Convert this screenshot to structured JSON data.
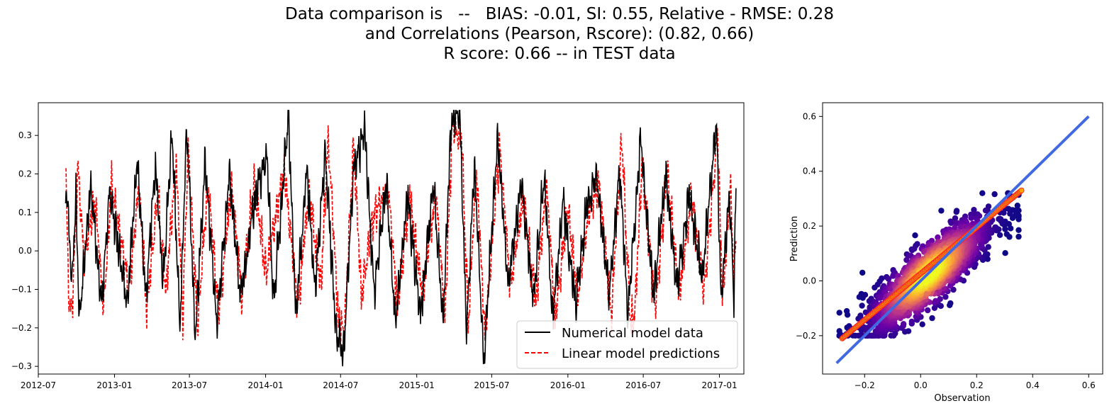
{
  "title_lines": [
    "Data comparison is   --   BIAS: -0.01, SI: 0.55, Relative - RMSE: 0.28",
    "and Correlations (Pearson, Rscore): (0.82, 0.66)",
    "R score: 0.66 -- in TEST data"
  ],
  "chart_data": [
    {
      "type": "line",
      "x_range": [
        "2012-07-01",
        "2017-03-01"
      ],
      "ylim": [
        -0.32,
        0.385
      ],
      "xticks": [
        "2012-07-01",
        "2013-01-01",
        "2013-07-01",
        "2014-01-01",
        "2014-07-01",
        "2015-01-01",
        "2015-07-01",
        "2016-01-01",
        "2016-07-01",
        "2017-01-01"
      ],
      "xtick_labels": [
        "2012-07",
        "2013-01",
        "2013-07",
        "2014-01",
        "2014-07",
        "2015-01",
        "2015-07",
        "2016-01",
        "2016-07",
        "2017-01"
      ],
      "yticks": [
        -0.3,
        -0.2,
        -0.1,
        0.0,
        0.1,
        0.2,
        0.3
      ],
      "ytick_labels": [
        "−0.3",
        "−0.2",
        "−0.1",
        "0.0",
        "0.1",
        "0.2",
        "0.3"
      ],
      "legend": "bottom-right",
      "series": [
        {
          "name": "Numerical model data",
          "color": "#000000",
          "style": "solid",
          "anchors": [
            [
              "2012-09-05",
              0.15
            ],
            [
              "2012-09-10",
              0.13
            ],
            [
              "2012-09-20",
              -0.1
            ],
            [
              "2012-09-30",
              0.15
            ],
            [
              "2012-10-08",
              -0.18
            ],
            [
              "2012-11-05",
              0.17
            ],
            [
              "2012-12-01",
              -0.15
            ],
            [
              "2012-12-20",
              0.16
            ],
            [
              "2013-02-01",
              -0.14
            ],
            [
              "2013-02-25",
              0.24
            ],
            [
              "2013-03-18",
              -0.12
            ],
            [
              "2013-04-10",
              0.23
            ],
            [
              "2013-04-28",
              -0.09
            ],
            [
              "2013-05-20",
              0.31
            ],
            [
              "2013-06-08",
              -0.19
            ],
            [
              "2013-06-25",
              0.33
            ],
            [
              "2013-07-15",
              -0.23
            ],
            [
              "2013-08-08",
              0.23
            ],
            [
              "2013-09-05",
              -0.19
            ],
            [
              "2013-10-05",
              0.2
            ],
            [
              "2013-11-01",
              -0.12
            ],
            [
              "2013-12-10",
              0.16
            ],
            [
              "2014-01-05",
              0.25
            ],
            [
              "2014-01-20",
              -0.14
            ],
            [
              "2014-02-25",
              0.36
            ],
            [
              "2014-03-15",
              -0.18
            ],
            [
              "2014-04-10",
              0.22
            ],
            [
              "2014-04-30",
              -0.11
            ],
            [
              "2014-05-25",
              0.26
            ],
            [
              "2014-06-20",
              -0.21
            ],
            [
              "2014-07-08",
              -0.27
            ],
            [
              "2014-08-01",
              0.2
            ],
            [
              "2014-08-28",
              0.32
            ],
            [
              "2014-09-20",
              -0.11
            ],
            [
              "2014-10-20",
              0.18
            ],
            [
              "2014-11-10",
              -0.19
            ],
            [
              "2014-12-10",
              0.14
            ],
            [
              "2015-01-10",
              -0.17
            ],
            [
              "2015-02-10",
              0.18
            ],
            [
              "2015-03-05",
              -0.19
            ],
            [
              "2015-03-25",
              0.34
            ],
            [
              "2015-04-15",
              0.36
            ],
            [
              "2015-05-01",
              -0.22
            ],
            [
              "2015-05-20",
              0.22
            ],
            [
              "2015-06-12",
              -0.29
            ],
            [
              "2015-07-15",
              0.29
            ],
            [
              "2015-08-10",
              -0.09
            ],
            [
              "2015-09-10",
              0.18
            ],
            [
              "2015-10-10",
              -0.13
            ],
            [
              "2015-11-05",
              0.2
            ],
            [
              "2015-11-25",
              -0.18
            ],
            [
              "2015-12-20",
              0.13
            ],
            [
              "2016-01-20",
              -0.14
            ],
            [
              "2016-02-15",
              0.11
            ],
            [
              "2016-03-10",
              0.2
            ],
            [
              "2016-04-10",
              -0.12
            ],
            [
              "2016-05-05",
              0.22
            ],
            [
              "2016-05-25",
              -0.18
            ],
            [
              "2016-06-25",
              0.29
            ],
            [
              "2016-07-25",
              -0.12
            ],
            [
              "2016-08-25",
              0.19
            ],
            [
              "2016-09-20",
              -0.1
            ],
            [
              "2016-10-20",
              0.14
            ],
            [
              "2016-11-20",
              -0.07
            ],
            [
              "2016-12-10",
              0.16
            ],
            [
              "2016-12-25",
              0.33
            ],
            [
              "2017-01-05",
              -0.13
            ],
            [
              "2017-01-25",
              0.15
            ],
            [
              "2017-02-05",
              -0.11
            ],
            [
              "2017-02-10",
              0.17
            ]
          ]
        },
        {
          "name": "Linear model predictions",
          "color": "#ff0000",
          "style": "dashed",
          "anchors": [
            [
              "2012-09-05",
              0.24
            ],
            [
              "2012-09-12",
              -0.11
            ],
            [
              "2012-09-20",
              -0.16
            ],
            [
              "2012-10-05",
              0.21
            ],
            [
              "2012-10-20",
              -0.02
            ],
            [
              "2012-11-15",
              0.14
            ],
            [
              "2012-12-05",
              -0.15
            ],
            [
              "2012-12-25",
              0.17
            ],
            [
              "2013-02-05",
              -0.1
            ],
            [
              "2013-03-01",
              0.16
            ],
            [
              "2013-03-20",
              -0.15
            ],
            [
              "2013-04-15",
              0.15
            ],
            [
              "2013-05-05",
              -0.11
            ],
            [
              "2013-05-30",
              0.23
            ],
            [
              "2013-06-15",
              -0.17
            ],
            [
              "2013-06-28",
              0.28
            ],
            [
              "2013-07-20",
              -0.19
            ],
            [
              "2013-08-15",
              0.17
            ],
            [
              "2013-09-10",
              -0.16
            ],
            [
              "2013-10-10",
              0.17
            ],
            [
              "2013-11-05",
              -0.12
            ],
            [
              "2013-12-05",
              0.18
            ],
            [
              "2014-01-01",
              -0.05
            ],
            [
              "2014-02-15",
              0.21
            ],
            [
              "2014-03-20",
              -0.14
            ],
            [
              "2014-04-15",
              0.15
            ],
            [
              "2014-05-15",
              -0.09
            ],
            [
              "2014-06-01",
              0.3
            ],
            [
              "2014-06-25",
              -0.17
            ],
            [
              "2014-07-10",
              -0.22
            ],
            [
              "2014-08-01",
              0.28
            ],
            [
              "2014-08-20",
              -0.11
            ],
            [
              "2014-09-20",
              0.1
            ],
            [
              "2014-10-25",
              0.15
            ],
            [
              "2014-11-15",
              -0.15
            ],
            [
              "2014-12-15",
              0.14
            ],
            [
              "2015-01-15",
              -0.12
            ],
            [
              "2015-02-15",
              0.16
            ],
            [
              "2015-03-10",
              -0.17
            ],
            [
              "2015-03-28",
              0.33
            ],
            [
              "2015-04-20",
              0.29
            ],
            [
              "2015-05-05",
              -0.19
            ],
            [
              "2015-05-25",
              0.21
            ],
            [
              "2015-06-15",
              -0.22
            ],
            [
              "2015-07-20",
              0.28
            ],
            [
              "2015-08-15",
              -0.1
            ],
            [
              "2015-09-15",
              0.14
            ],
            [
              "2015-10-15",
              -0.14
            ],
            [
              "2015-11-10",
              0.17
            ],
            [
              "2015-12-01",
              -0.17
            ],
            [
              "2016-01-01",
              0.11
            ],
            [
              "2016-01-25",
              -0.12
            ],
            [
              "2016-02-20",
              0.1
            ],
            [
              "2016-03-15",
              0.18
            ],
            [
              "2016-04-15",
              -0.16
            ],
            [
              "2016-05-10",
              0.29
            ],
            [
              "2016-05-30",
              -0.17
            ],
            [
              "2016-06-10",
              -0.18
            ],
            [
              "2016-06-28",
              0.23
            ],
            [
              "2016-07-30",
              -0.15
            ],
            [
              "2016-08-28",
              0.21
            ],
            [
              "2016-09-25",
              -0.12
            ],
            [
              "2016-10-25",
              0.14
            ],
            [
              "2016-11-25",
              -0.11
            ],
            [
              "2016-12-15",
              0.14
            ],
            [
              "2016-12-28",
              0.31
            ],
            [
              "2017-01-08",
              -0.12
            ],
            [
              "2017-01-28",
              0.16
            ],
            [
              "2017-02-05",
              -0.07
            ],
            [
              "2017-02-10",
              0.06
            ]
          ]
        }
      ]
    },
    {
      "type": "scatter",
      "xlabel": "Observation",
      "ylabel": "Prediction",
      "xlim": [
        -0.35,
        0.65
      ],
      "ylim": [
        -0.34,
        0.65
      ],
      "xticks": [
        -0.2,
        0.0,
        0.2,
        0.4,
        0.6
      ],
      "xtick_labels": [
        "−0.2",
        "0.0",
        "0.2",
        "0.4",
        "0.6"
      ],
      "yticks": [
        -0.2,
        0.0,
        0.2,
        0.4,
        0.6
      ],
      "ytick_labels": [
        "−0.2",
        "0.0",
        "0.2",
        "0.4",
        "0.6"
      ],
      "density_colormap": [
        "#0d0887",
        "#6a00a8",
        "#b12a90",
        "#e16462",
        "#fca636",
        "#f0f921"
      ],
      "points": {
        "count": 1600,
        "x_center": 0.03,
        "x_spread": 0.12,
        "slope": 0.8,
        "y_spread": 0.055
      },
      "fit_line": {
        "x": [
          -0.28,
          0.36
        ],
        "y": [
          -0.21,
          0.33
        ],
        "color": "#ffa500",
        "edge_color": "#ff2020"
      },
      "identity_line": {
        "x": [
          -0.3,
          0.6
        ],
        "y": [
          -0.3,
          0.6
        ],
        "color": "#4169e1"
      }
    }
  ]
}
